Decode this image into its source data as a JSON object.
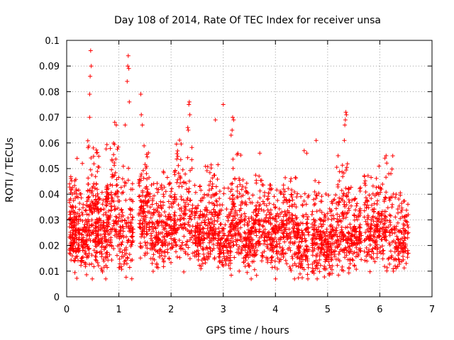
{
  "chart_data": {
    "type": "scatter",
    "title": "Day 108 of 2014, Rate Of TEC Index for receiver unsa",
    "xlabel": "GPS time / hours",
    "ylabel": "ROTI / TECUs",
    "xlim": [
      0,
      7
    ],
    "ylim": [
      0,
      0.1
    ],
    "xticks": [
      "0",
      "1",
      "2",
      "3",
      "4",
      "5",
      "6",
      "7"
    ],
    "yticks": [
      "0",
      "0.01",
      "0.02",
      "0.03",
      "0.04",
      "0.05",
      "0.06",
      "0.07",
      "0.08",
      "0.09",
      "0.1"
    ],
    "grid": true,
    "legend": "none",
    "marker": "plus",
    "series_color": "#ff0000",
    "outliers": [
      [
        0.46,
        0.096
      ],
      [
        0.47,
        0.09
      ],
      [
        0.45,
        0.086
      ],
      [
        0.44,
        0.079
      ],
      [
        0.44,
        0.07
      ],
      [
        1.18,
        0.094
      ],
      [
        1.17,
        0.09
      ],
      [
        1.19,
        0.089
      ],
      [
        1.16,
        0.084
      ],
      [
        1.2,
        0.076
      ],
      [
        1.42,
        0.079
      ],
      [
        1.43,
        0.071
      ],
      [
        1.45,
        0.067
      ],
      [
        0.92,
        0.068
      ],
      [
        0.95,
        0.067
      ],
      [
        1.12,
        0.067
      ],
      [
        2.35,
        0.076
      ],
      [
        2.34,
        0.075
      ],
      [
        2.36,
        0.071
      ],
      [
        2.32,
        0.066
      ],
      [
        2.33,
        0.065
      ],
      [
        3.0,
        0.075
      ],
      [
        2.85,
        0.069
      ],
      [
        3.18,
        0.07
      ],
      [
        3.2,
        0.069
      ],
      [
        3.17,
        0.065
      ],
      [
        3.15,
        0.063
      ],
      [
        4.78,
        0.061
      ],
      [
        5.35,
        0.072
      ],
      [
        5.36,
        0.071
      ],
      [
        5.34,
        0.069
      ],
      [
        5.33,
        0.067
      ],
      [
        5.32,
        0.061
      ],
      [
        5.2,
        0.055
      ],
      [
        6.12,
        0.055
      ],
      [
        3.7,
        0.056
      ],
      [
        4.55,
        0.057
      ],
      [
        4.6,
        0.056
      ],
      [
        0.2,
        0.054
      ],
      [
        0.3,
        0.052
      ]
    ],
    "bursts": [
      [
        0.05,
        0.18,
        0.024,
        0.009
      ],
      [
        0.18,
        0.4,
        0.022,
        0.008
      ],
      [
        0.4,
        0.62,
        0.03,
        0.012
      ],
      [
        0.55,
        0.78,
        0.022,
        0.008
      ],
      [
        0.75,
        1.0,
        0.033,
        0.011
      ],
      [
        1.0,
        1.28,
        0.025,
        0.01
      ],
      [
        1.38,
        1.6,
        0.032,
        0.011
      ],
      [
        1.6,
        1.85,
        0.024,
        0.008
      ],
      [
        1.85,
        2.1,
        0.026,
        0.009
      ],
      [
        2.1,
        2.42,
        0.03,
        0.012
      ],
      [
        2.45,
        2.65,
        0.024,
        0.008
      ],
      [
        2.65,
        2.9,
        0.027,
        0.01
      ],
      [
        2.9,
        3.15,
        0.022,
        0.008
      ],
      [
        3.15,
        3.4,
        0.028,
        0.011
      ],
      [
        3.4,
        3.62,
        0.024,
        0.008
      ],
      [
        3.62,
        3.9,
        0.025,
        0.009
      ],
      [
        3.9,
        4.15,
        0.023,
        0.008
      ],
      [
        4.15,
        4.4,
        0.024,
        0.009
      ],
      [
        4.4,
        4.65,
        0.021,
        0.008
      ],
      [
        4.7,
        4.9,
        0.022,
        0.009
      ],
      [
        4.9,
        5.15,
        0.02,
        0.008
      ],
      [
        5.15,
        5.4,
        0.026,
        0.01
      ],
      [
        5.4,
        5.65,
        0.022,
        0.008
      ],
      [
        5.7,
        5.95,
        0.025,
        0.009
      ],
      [
        5.95,
        6.25,
        0.028,
        0.011
      ],
      [
        6.25,
        6.55,
        0.021,
        0.008
      ]
    ],
    "burst_count": 3200
  }
}
